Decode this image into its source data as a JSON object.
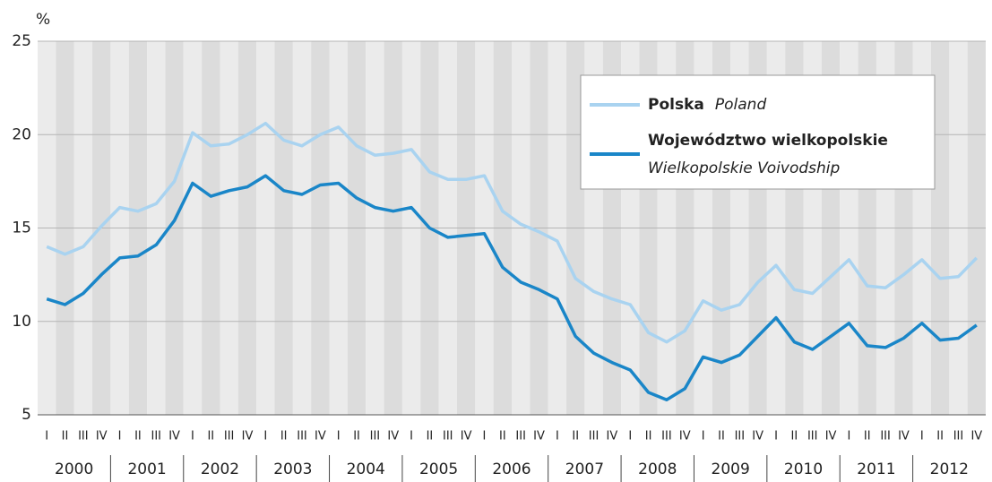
{
  "chart_data": {
    "type": "line",
    "y_unit": "%",
    "ylim": [
      5,
      25
    ],
    "yticks": [
      5,
      10,
      15,
      20,
      25
    ],
    "grid": true,
    "categories": [
      "I",
      "II",
      "III",
      "IV",
      "I",
      "II",
      "III",
      "IV",
      "I",
      "II",
      "III",
      "IV",
      "I",
      "II",
      "III",
      "IV",
      "I",
      "II",
      "III",
      "IV",
      "I",
      "II",
      "III",
      "IV",
      "I",
      "II",
      "III",
      "IV",
      "I",
      "II",
      "III",
      "IV",
      "I",
      "II",
      "III",
      "IV",
      "I",
      "II",
      "III",
      "IV",
      "I",
      "II",
      "III",
      "IV",
      "I",
      "II",
      "III",
      "IV",
      "I",
      "II",
      "III",
      "IV"
    ],
    "years": [
      "2000",
      "2001",
      "2002",
      "2003",
      "2004",
      "2005",
      "2006",
      "2007",
      "2008",
      "2009",
      "2010",
      "2011",
      "2012"
    ],
    "legend": "upper right",
    "series": [
      {
        "name": "Polska",
        "name_en": "Poland",
        "color": "#a9d3f0",
        "values": [
          14.0,
          13.6,
          14.0,
          15.1,
          16.1,
          15.9,
          16.3,
          17.5,
          20.1,
          19.4,
          19.5,
          20.0,
          20.6,
          19.7,
          19.4,
          20.0,
          20.4,
          19.4,
          18.9,
          19.0,
          19.2,
          18.0,
          17.6,
          17.6,
          17.8,
          15.9,
          15.2,
          14.8,
          14.3,
          12.3,
          11.6,
          11.2,
          10.9,
          9.4,
          8.9,
          9.5,
          11.1,
          10.6,
          10.9,
          12.1,
          13.0,
          11.7,
          11.5,
          12.4,
          13.3,
          11.9,
          11.8,
          12.5,
          13.3,
          12.3,
          12.4,
          13.4
        ]
      },
      {
        "name": "Województwo wielkopolskie",
        "name_en": "Wielkopolskie Voivodship",
        "color": "#1a86c8",
        "values": [
          11.2,
          10.9,
          11.5,
          12.5,
          13.4,
          13.5,
          14.1,
          15.4,
          17.4,
          16.7,
          17.0,
          17.2,
          17.8,
          17.0,
          16.8,
          17.3,
          17.4,
          16.6,
          16.1,
          15.9,
          16.1,
          15.0,
          14.5,
          14.6,
          14.7,
          12.9,
          12.1,
          11.7,
          11.2,
          9.2,
          8.3,
          7.8,
          7.4,
          6.2,
          5.8,
          6.4,
          8.1,
          7.8,
          8.2,
          9.2,
          10.2,
          8.9,
          8.5,
          9.2,
          9.9,
          8.7,
          8.6,
          9.1,
          9.9,
          9.0,
          9.1,
          9.8
        ]
      }
    ]
  }
}
